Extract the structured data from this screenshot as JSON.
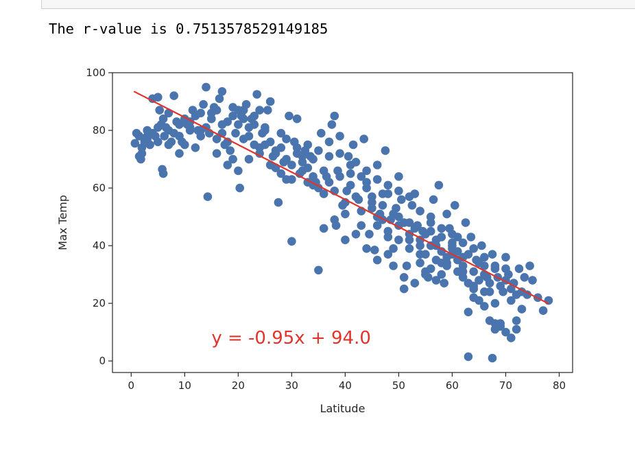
{
  "output": {
    "r_value_text": "The r-value is 0.7513578529149185"
  },
  "colors": {
    "points": "#4a74ad",
    "line": "#e0342c",
    "annotation": "#e0342c",
    "axes": "#262626"
  },
  "chart_data": {
    "type": "scatter",
    "title": "",
    "xlabel": "Latitude",
    "ylabel": "Max Temp",
    "xlim": [
      -3.5,
      82.5
    ],
    "ylim": [
      -4,
      100
    ],
    "xticks": [
      0,
      10,
      20,
      30,
      40,
      50,
      60,
      70,
      80
    ],
    "yticks": [
      0,
      20,
      40,
      60,
      80,
      100
    ],
    "grid": false,
    "legend": "none",
    "regression": {
      "slope": -0.95,
      "intercept": 94.0,
      "x_range": [
        0.5,
        78
      ],
      "equation_text": "y = -0.95x + 94.0",
      "equation_anchor": [
        15,
        6
      ]
    },
    "points": [
      [
        1,
        79
      ],
      [
        0.7,
        75.5
      ],
      [
        1.5,
        78
      ],
      [
        1.8,
        70
      ],
      [
        2,
        72
      ],
      [
        2.5,
        76
      ],
      [
        3,
        80
      ],
      [
        3.5,
        75
      ],
      [
        4,
        91
      ],
      [
        4.5,
        78
      ],
      [
        5,
        91.5
      ],
      [
        5.3,
        87
      ],
      [
        5.6,
        82
      ],
      [
        5.8,
        66.5
      ],
      [
        6,
        65
      ],
      [
        6.2,
        78
      ],
      [
        6.5,
        81
      ],
      [
        7,
        75
      ],
      [
        7.5,
        76
      ],
      [
        8,
        92
      ],
      [
        8.5,
        83
      ],
      [
        9,
        72
      ],
      [
        9.5,
        76
      ],
      [
        10,
        84
      ],
      [
        10.5,
        82
      ],
      [
        11,
        80
      ],
      [
        11.5,
        87
      ],
      [
        12,
        74
      ],
      [
        12.5,
        80
      ],
      [
        13,
        86
      ],
      [
        13.5,
        89
      ],
      [
        14,
        95
      ],
      [
        14.3,
        57
      ],
      [
        14.6,
        79
      ],
      [
        15,
        84
      ],
      [
        15.5,
        88
      ],
      [
        16,
        87
      ],
      [
        16.5,
        91
      ],
      [
        17,
        93.5
      ],
      [
        17.5,
        75
      ],
      [
        18,
        83
      ],
      [
        18.5,
        73
      ],
      [
        19,
        88
      ],
      [
        19.5,
        79
      ],
      [
        20,
        87
      ],
      [
        20.3,
        60
      ],
      [
        20.6,
        85
      ],
      [
        21,
        77
      ],
      [
        21.5,
        89
      ],
      [
        22,
        81
      ],
      [
        22.5,
        84
      ],
      [
        23,
        82
      ],
      [
        23.5,
        92.5
      ],
      [
        24,
        87
      ],
      [
        24.5,
        79
      ],
      [
        25,
        75
      ],
      [
        25.5,
        87
      ],
      [
        26,
        90
      ],
      [
        26.5,
        71
      ],
      [
        27,
        72
      ],
      [
        27.5,
        55
      ],
      [
        28,
        79
      ],
      [
        28.5,
        69
      ],
      [
        29,
        63
      ],
      [
        29.5,
        85
      ],
      [
        30,
        41.5
      ],
      [
        30.5,
        76
      ],
      [
        31,
        84
      ],
      [
        31.5,
        65
      ],
      [
        32,
        71
      ],
      [
        32.5,
        73
      ],
      [
        33,
        67
      ],
      [
        33.5,
        71
      ],
      [
        34,
        64
      ],
      [
        34.5,
        62
      ],
      [
        35,
        31.5
      ],
      [
        35.5,
        79
      ],
      [
        36,
        66
      ],
      [
        36.5,
        64
      ],
      [
        37,
        76
      ],
      [
        37.5,
        82
      ],
      [
        38,
        85
      ],
      [
        38.3,
        47
      ],
      [
        38.6,
        66
      ],
      [
        39,
        78
      ],
      [
        39.5,
        54
      ],
      [
        40,
        42
      ],
      [
        40.3,
        59
      ],
      [
        40.6,
        71
      ],
      [
        41,
        65
      ],
      [
        41.5,
        75
      ],
      [
        42,
        69
      ],
      [
        42.5,
        56
      ],
      [
        43,
        47
      ],
      [
        43.5,
        77
      ],
      [
        44,
        62
      ],
      [
        44.5,
        44
      ],
      [
        45,
        53
      ],
      [
        45.5,
        38.5
      ],
      [
        46,
        68
      ],
      [
        46.5,
        51
      ],
      [
        47,
        58
      ],
      [
        47.5,
        73
      ],
      [
        48,
        61
      ],
      [
        48.5,
        49
      ],
      [
        49,
        39
      ],
      [
        49.5,
        53
      ],
      [
        50,
        64
      ],
      [
        50.5,
        56
      ],
      [
        51,
        25
      ],
      [
        51.5,
        33
      ],
      [
        52,
        42
      ],
      [
        52.5,
        54
      ],
      [
        53,
        58
      ],
      [
        53.5,
        47
      ],
      [
        54,
        37
      ],
      [
        54.5,
        45
      ],
      [
        55,
        31
      ],
      [
        55.5,
        29
      ],
      [
        56,
        50
      ],
      [
        56.5,
        56
      ],
      [
        57,
        40
      ],
      [
        57.5,
        61
      ],
      [
        58,
        34
      ],
      [
        58.5,
        27
      ],
      [
        59,
        51
      ],
      [
        59.5,
        46
      ],
      [
        60,
        39
      ],
      [
        60.5,
        54
      ],
      [
        61,
        43
      ],
      [
        61.5,
        31
      ],
      [
        62,
        36
      ],
      [
        62.5,
        48
      ],
      [
        63,
        17
      ],
      [
        63.5,
        43
      ],
      [
        64,
        25
      ],
      [
        64.5,
        35
      ],
      [
        65,
        28
      ],
      [
        65.5,
        40
      ],
      [
        66,
        33
      ],
      [
        66.5,
        29
      ],
      [
        67,
        24
      ],
      [
        67.5,
        37
      ],
      [
        68,
        20
      ],
      [
        68.5,
        29
      ],
      [
        69,
        13
      ],
      [
        69.5,
        24
      ],
      [
        70,
        36
      ],
      [
        70.5,
        30
      ],
      [
        71,
        21
      ],
      [
        71.5,
        27
      ],
      [
        72,
        14
      ],
      [
        72.5,
        32
      ],
      [
        73,
        18
      ],
      [
        73.5,
        29
      ],
      [
        74,
        23
      ],
      [
        74.5,
        33
      ],
      [
        75,
        28
      ],
      [
        76,
        22
      ],
      [
        77,
        17.5
      ],
      [
        78,
        21
      ],
      [
        2,
        74
      ],
      [
        3,
        77
      ],
      [
        4,
        79
      ],
      [
        5,
        81
      ],
      [
        6,
        84
      ],
      [
        7,
        86
      ],
      [
        8,
        79
      ],
      [
        9,
        82
      ],
      [
        10,
        75
      ],
      [
        11,
        83
      ],
      [
        12,
        85
      ],
      [
        13,
        78
      ],
      [
        14,
        81
      ],
      [
        15,
        86
      ],
      [
        16,
        77
      ],
      [
        17,
        79
      ],
      [
        18,
        76
      ],
      [
        19,
        70
      ],
      [
        20,
        82
      ],
      [
        21,
        84
      ],
      [
        22,
        78
      ],
      [
        23,
        75
      ],
      [
        24,
        72
      ],
      [
        25,
        80
      ],
      [
        26,
        76
      ],
      [
        27,
        67
      ],
      [
        28,
        74
      ],
      [
        29,
        70
      ],
      [
        30,
        68
      ],
      [
        31,
        72
      ],
      [
        32,
        69
      ],
      [
        33,
        62
      ],
      [
        34,
        70
      ],
      [
        35,
        60
      ],
      [
        36,
        58
      ],
      [
        37,
        62
      ],
      [
        38,
        59
      ],
      [
        39,
        64
      ],
      [
        40,
        55
      ],
      [
        41,
        61
      ],
      [
        42,
        57
      ],
      [
        43,
        52
      ],
      [
        44,
        60
      ],
      [
        45,
        55
      ],
      [
        46,
        50
      ],
      [
        47,
        54
      ],
      [
        48,
        45
      ],
      [
        49,
        51
      ],
      [
        50,
        47
      ],
      [
        51,
        48
      ],
      [
        52,
        44
      ],
      [
        53,
        46
      ],
      [
        54,
        42
      ],
      [
        55,
        44
      ],
      [
        56,
        40
      ],
      [
        57,
        42
      ],
      [
        58,
        38
      ],
      [
        59,
        36
      ],
      [
        60,
        40
      ],
      [
        61,
        35
      ],
      [
        62,
        33
      ],
      [
        63,
        37
      ],
      [
        64,
        31
      ],
      [
        65,
        34
      ],
      [
        66,
        30
      ],
      [
        67,
        27
      ],
      [
        68,
        32
      ],
      [
        69,
        26
      ],
      [
        70,
        28
      ],
      [
        71,
        25
      ],
      [
        72,
        23
      ],
      [
        73,
        24
      ],
      [
        54,
        34
      ],
      [
        55,
        37
      ],
      [
        56,
        32
      ],
      [
        57,
        35
      ],
      [
        58,
        30
      ],
      [
        59,
        33
      ],
      [
        60,
        41
      ],
      [
        61,
        38
      ],
      [
        62,
        29
      ],
      [
        63,
        27
      ],
      [
        64,
        26
      ],
      [
        65,
        21
      ],
      [
        66,
        24
      ],
      [
        67,
        14
      ],
      [
        68,
        11
      ],
      [
        69,
        12
      ],
      [
        70,
        10
      ],
      [
        71,
        8
      ],
      [
        72,
        11
      ],
      [
        63,
        1.5
      ],
      [
        67.5,
        1
      ],
      [
        50,
        50
      ],
      [
        52,
        48
      ],
      [
        47,
        49
      ],
      [
        45,
        57
      ],
      [
        43,
        64
      ],
      [
        41,
        68
      ],
      [
        39,
        72
      ],
      [
        37,
        71
      ],
      [
        35,
        73
      ],
      [
        33,
        75
      ],
      [
        31,
        74
      ],
      [
        29,
        77
      ],
      [
        27,
        73
      ],
      [
        25,
        81
      ],
      [
        23,
        85
      ],
      [
        21,
        87
      ],
      [
        19,
        85
      ],
      [
        17,
        82
      ],
      [
        15,
        84
      ],
      [
        13,
        80
      ],
      [
        11,
        81
      ],
      [
        9,
        78
      ],
      [
        7,
        80
      ],
      [
        5,
        76
      ],
      [
        3,
        78
      ],
      [
        1.5,
        71
      ],
      [
        46,
        35
      ],
      [
        48,
        37
      ],
      [
        50,
        42
      ],
      [
        52,
        39
      ],
      [
        54,
        40
      ],
      [
        56,
        45
      ],
      [
        58,
        43
      ],
      [
        60,
        37
      ],
      [
        62,
        31
      ],
      [
        64,
        22
      ],
      [
        66,
        19
      ],
      [
        68,
        13
      ],
      [
        42,
        44
      ],
      [
        44,
        39
      ],
      [
        46,
        47
      ],
      [
        48,
        43
      ],
      [
        36,
        46
      ],
      [
        38,
        49
      ],
      [
        40,
        51
      ],
      [
        44,
        66
      ],
      [
        46,
        63
      ],
      [
        48,
        58
      ],
      [
        50,
        59
      ],
      [
        52,
        57
      ],
      [
        54,
        52
      ],
      [
        56,
        48
      ],
      [
        58,
        46
      ],
      [
        60,
        44
      ],
      [
        62,
        41
      ],
      [
        64,
        39
      ],
      [
        66,
        36
      ],
      [
        68,
        33
      ],
      [
        70,
        32
      ],
      [
        49,
        33
      ],
      [
        51,
        29
      ],
      [
        53,
        27
      ],
      [
        55,
        30
      ],
      [
        57,
        28
      ],
      [
        59,
        34
      ],
      [
        61,
        31
      ],
      [
        16,
        72
      ],
      [
        18,
        68
      ],
      [
        20,
        66
      ],
      [
        22,
        70
      ],
      [
        24,
        74
      ],
      [
        26,
        68
      ],
      [
        28,
        65
      ],
      [
        30,
        63
      ],
      [
        32,
        66
      ],
      [
        34,
        61
      ]
    ]
  }
}
